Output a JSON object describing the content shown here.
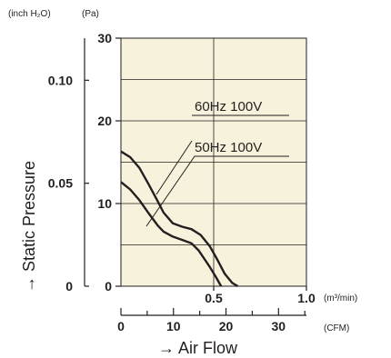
{
  "chart_data": {
    "type": "line",
    "title": "",
    "xlabel": "→ Air Flow",
    "ylabel": "→ Static Pressure",
    "units": {
      "y_inch": "(inch H₂O)",
      "y_pa": "(Pa)",
      "x_m3": "(m³/min)",
      "x_cfm": "(CFM)"
    },
    "y_pa_ticks": [
      "30",
      "20",
      "10",
      "0"
    ],
    "y_inch_ticks": [
      "0.10",
      "0.05",
      "0"
    ],
    "x_m3_ticks": [
      "0.5",
      "1.0"
    ],
    "x_cfm_ticks": [
      "0",
      "10",
      "20",
      "30"
    ],
    "xlim": [
      0,
      1.0
    ],
    "ylim": [
      0,
      30
    ],
    "grid": true,
    "background": "#f7f2dc",
    "line_color": "#231f20",
    "series": [
      {
        "name": "60Hz 100V",
        "x": [
          0,
          0.05,
          0.1,
          0.15,
          0.2,
          0.23,
          0.28,
          0.33,
          0.38,
          0.43,
          0.48,
          0.52,
          0.56,
          0.6,
          0.63
        ],
        "y": [
          16.3,
          15.6,
          14.3,
          12.3,
          10.2,
          8.9,
          7.6,
          7.2,
          6.9,
          6.2,
          4.8,
          3.2,
          1.5,
          0.4,
          0
        ]
      },
      {
        "name": "50Hz 100V",
        "x": [
          0,
          0.05,
          0.1,
          0.15,
          0.2,
          0.23,
          0.28,
          0.33,
          0.38,
          0.42,
          0.45,
          0.48,
          0.51,
          0.53,
          0.54
        ],
        "y": [
          12.6,
          11.7,
          10.4,
          8.8,
          7.3,
          6.6,
          6.0,
          5.6,
          5.2,
          4.3,
          3.3,
          2.3,
          1.2,
          0.4,
          0
        ]
      }
    ]
  }
}
